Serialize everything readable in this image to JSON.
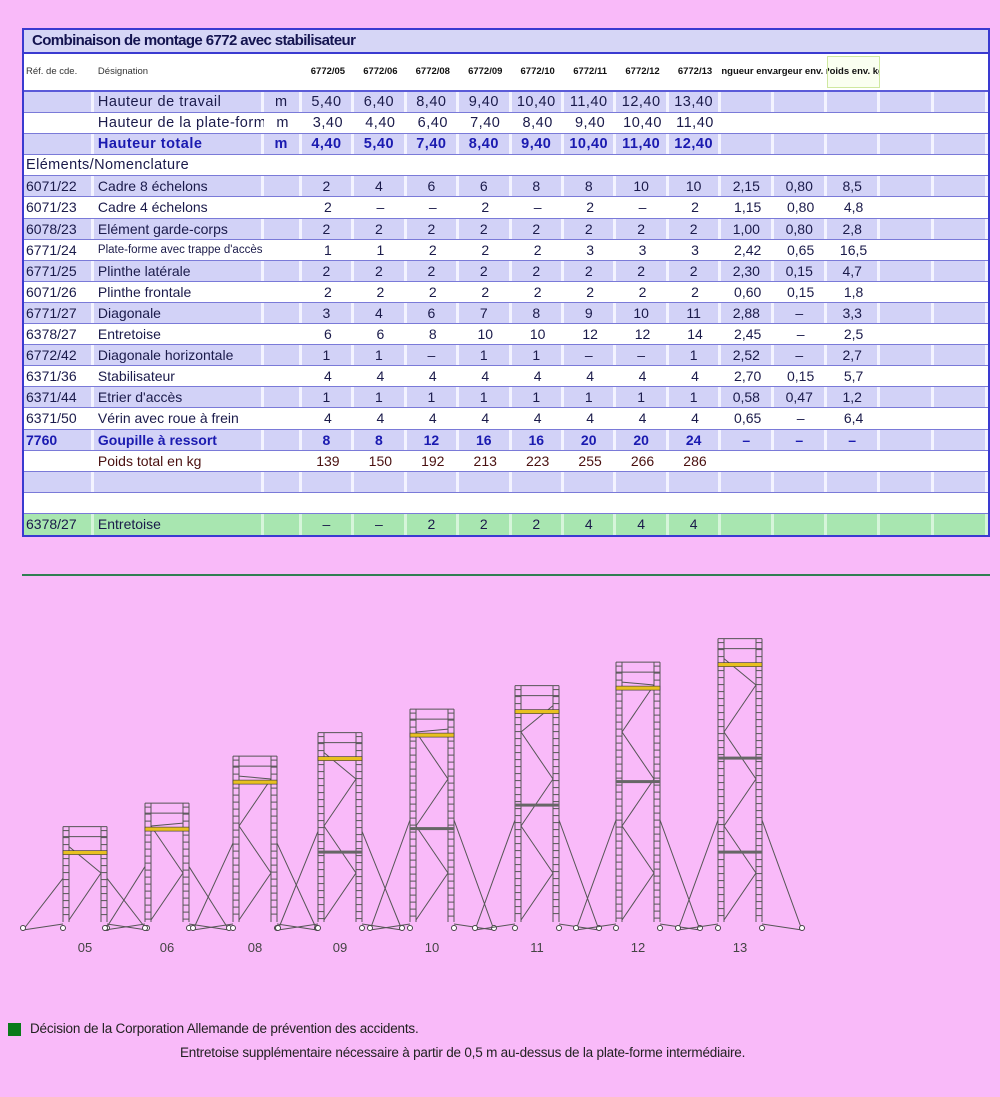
{
  "title": "Combinaison de montage 6772 avec stabilisateur",
  "header": {
    "ref": "Réf. de cde.",
    "designation": "Désignation",
    "models": [
      "6772/05",
      "6772/06",
      "6772/08",
      "6772/09",
      "6772/10",
      "6772/11",
      "6772/12",
      "6772/13"
    ],
    "longueur": "Longueur env. m",
    "largeur": "Largeur env. m",
    "poids": "Poids env. kg"
  },
  "rows": [
    {
      "type": "height",
      "ref": "",
      "designation": "Hauteur de travail",
      "unit": "m",
      "values": [
        "5,40",
        "6,40",
        "8,40",
        "9,40",
        "10,40",
        "11,40",
        "12,40",
        "13,40"
      ],
      "longueur": "",
      "largeur": "",
      "poids": ""
    },
    {
      "type": "height",
      "ref": "",
      "designation": "Hauteur de la plate-forme",
      "unit": "m",
      "values": [
        "3,40",
        "4,40",
        "6,40",
        "7,40",
        "8,40",
        "9,40",
        "10,40",
        "11,40"
      ],
      "longueur": "",
      "largeur": "",
      "poids": ""
    },
    {
      "type": "height-bold",
      "ref": "",
      "designation": "Hauteur totale",
      "unit": "m",
      "values": [
        "4,40",
        "5,40",
        "7,40",
        "8,40",
        "9,40",
        "10,40",
        "11,40",
        "12,40"
      ],
      "longueur": "",
      "largeur": "",
      "poids": ""
    },
    {
      "type": "section",
      "ref": "Eléments/Nomenclature"
    },
    {
      "type": "item",
      "ref": "6071/22",
      "designation": "Cadre 8 échelons",
      "unit": "",
      "values": [
        "2",
        "4",
        "6",
        "6",
        "8",
        "8",
        "10",
        "10"
      ],
      "longueur": "2,15",
      "largeur": "0,80",
      "poids": "8,5"
    },
    {
      "type": "item",
      "ref": "6071/23",
      "designation": "Cadre 4 échelons",
      "unit": "",
      "values": [
        "2",
        "–",
        "–",
        "2",
        "–",
        "2",
        "–",
        "2"
      ],
      "longueur": "1,15",
      "largeur": "0,80",
      "poids": "4,8"
    },
    {
      "type": "item",
      "ref": "6078/23",
      "designation": "Elément garde-corps",
      "unit": "",
      "values": [
        "2",
        "2",
        "2",
        "2",
        "2",
        "2",
        "2",
        "2"
      ],
      "longueur": "1,00",
      "largeur": "0,80",
      "poids": "2,8"
    },
    {
      "type": "item-small",
      "ref": "6771/24",
      "designation": "Plate-forme avec trappe d'accès",
      "unit": "",
      "values": [
        "1",
        "1",
        "2",
        "2",
        "2",
        "3",
        "3",
        "3"
      ],
      "longueur": "2,42",
      "largeur": "0,65",
      "poids": "16,5"
    },
    {
      "type": "item",
      "ref": "6771/25",
      "designation": "Plinthe latérale",
      "unit": "",
      "values": [
        "2",
        "2",
        "2",
        "2",
        "2",
        "2",
        "2",
        "2"
      ],
      "longueur": "2,30",
      "largeur": "0,15",
      "poids": "4,7"
    },
    {
      "type": "item",
      "ref": "6071/26",
      "designation": "Plinthe frontale",
      "unit": "",
      "values": [
        "2",
        "2",
        "2",
        "2",
        "2",
        "2",
        "2",
        "2"
      ],
      "longueur": "0,60",
      "largeur": "0,15",
      "poids": "1,8"
    },
    {
      "type": "item",
      "ref": "6771/27",
      "designation": "Diagonale",
      "unit": "",
      "values": [
        "3",
        "4",
        "6",
        "7",
        "8",
        "9",
        "10",
        "11"
      ],
      "longueur": "2,88",
      "largeur": "–",
      "poids": "3,3"
    },
    {
      "type": "item",
      "ref": "6378/27",
      "designation": "Entretoise",
      "unit": "",
      "values": [
        "6",
        "6",
        "8",
        "10",
        "10",
        "12",
        "12",
        "14"
      ],
      "longueur": "2,45",
      "largeur": "–",
      "poids": "2,5"
    },
    {
      "type": "item",
      "ref": "6772/42",
      "designation": "Diagonale horizontale",
      "unit": "",
      "values": [
        "1",
        "1",
        "–",
        "1",
        "1",
        "–",
        "–",
        "1"
      ],
      "longueur": "2,52",
      "largeur": "–",
      "poids": "2,7"
    },
    {
      "type": "item",
      "ref": "6371/36",
      "designation": "Stabilisateur",
      "unit": "",
      "values": [
        "4",
        "4",
        "4",
        "4",
        "4",
        "4",
        "4",
        "4"
      ],
      "longueur": "2,70",
      "largeur": "0,15",
      "poids": "5,7"
    },
    {
      "type": "item",
      "ref": "6371/44",
      "designation": "Etrier d'accès",
      "unit": "",
      "values": [
        "1",
        "1",
        "1",
        "1",
        "1",
        "1",
        "1",
        "1"
      ],
      "longueur": "0,58",
      "largeur": "0,47",
      "poids": "1,2"
    },
    {
      "type": "item",
      "ref": "6371/50",
      "designation": "Vérin avec roue à frein",
      "unit": "",
      "values": [
        "4",
        "4",
        "4",
        "4",
        "4",
        "4",
        "4",
        "4"
      ],
      "longueur": "0,65",
      "largeur": "–",
      "poids": "6,4"
    },
    {
      "type": "item-bold",
      "ref": "7760",
      "designation": "Goupille à ressort",
      "unit": "",
      "values": [
        "8",
        "8",
        "12",
        "16",
        "16",
        "20",
        "20",
        "24"
      ],
      "longueur": "–",
      "largeur": "–",
      "poids": "–"
    },
    {
      "type": "total",
      "ref": "",
      "designation": "Poids total en kg",
      "unit": "",
      "values": [
        "139",
        "150",
        "192",
        "213",
        "223",
        "255",
        "266",
        "286"
      ],
      "longueur": "",
      "largeur": "",
      "poids": ""
    },
    {
      "type": "blank"
    },
    {
      "type": "blank"
    },
    {
      "type": "green",
      "ref": "6378/27",
      "designation": "Entretoise",
      "unit": "",
      "values": [
        "–",
        "–",
        "2",
        "2",
        "2",
        "4",
        "4",
        "4"
      ],
      "longueur": "",
      "largeur": "",
      "poids": ""
    }
  ],
  "towers": {
    "labels": [
      "05",
      "06",
      "08",
      "09",
      "10",
      "11",
      "12",
      "13"
    ],
    "hauteur_totale_m": [
      4.4,
      5.4,
      7.4,
      8.4,
      9.4,
      10.4,
      11.4,
      12.4
    ],
    "platform_color": "#e8c020"
  },
  "footnote": {
    "bullet_color": "#0a7a1a",
    "line1": "Décision de la Corporation Allemande de prévention des accidents.",
    "line2": "Entretoise supplémentaire nécessaire à partir de 0,5 m au-dessus de la  plate-forme intermédiaire."
  }
}
